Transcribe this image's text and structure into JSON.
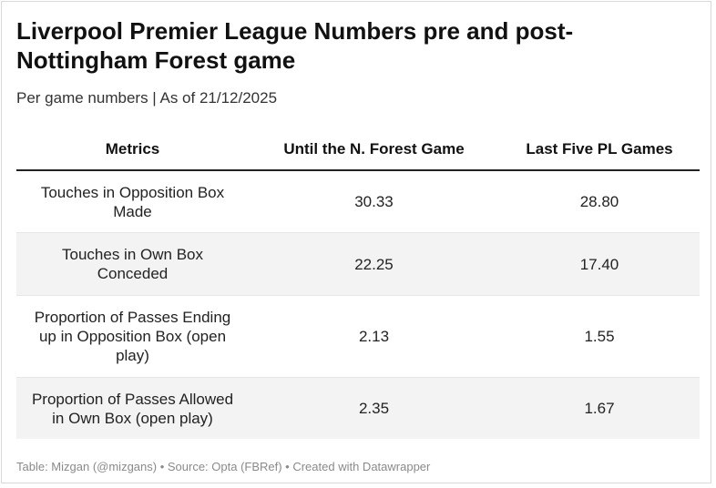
{
  "title": "Liverpool Premier League Numbers pre and post-Nottingham Forest game",
  "subtitle": "Per game numbers | As of 21/12/2025",
  "footer": "Table: Mizgan (@mizgans) • Source: Opta (FBRef) • Created with Datawrapper",
  "colors": {
    "header_rule": "#222222",
    "shaded_row": "#f3f3f3",
    "footer_text": "#8a8a8a"
  },
  "chart_data": {
    "type": "table",
    "title": "Liverpool Premier League Numbers pre and post-Nottingham Forest game",
    "subtitle": "Per game numbers | As of 21/12/2025",
    "columns": [
      "Metrics",
      "Until the N. Forest Game",
      "Last Five PL Games"
    ],
    "rows": [
      [
        "Touches in Opposition Box Made",
        "30.33",
        "28.80"
      ],
      [
        "Touches in Own Box Conceded",
        "22.25",
        "17.40"
      ],
      [
        "Proportion of Passes Ending up in Opposition Box (open play)",
        "2.13",
        "1.55"
      ],
      [
        "Proportion of Passes Allowed in Own Box (open play)",
        "2.35",
        "1.67"
      ]
    ]
  }
}
